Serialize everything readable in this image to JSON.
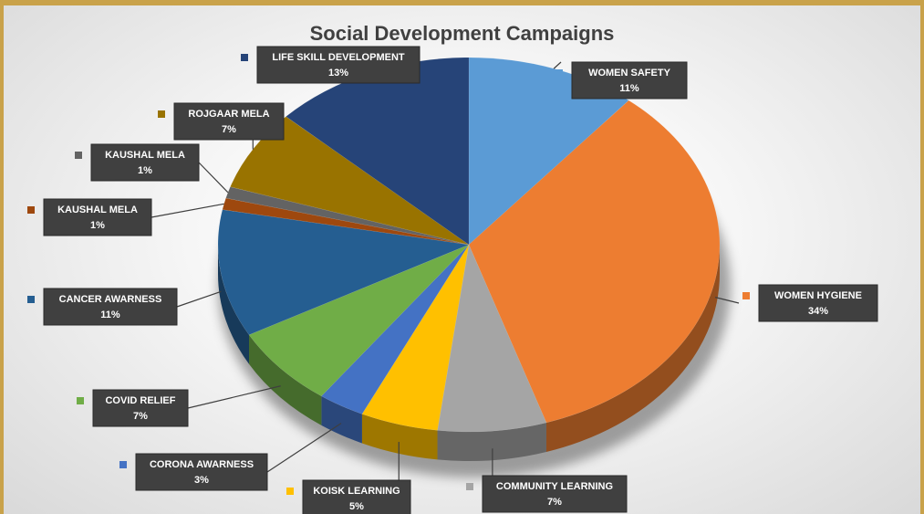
{
  "chart_data": {
    "type": "pie",
    "title": "Social Development Campaigns",
    "slices": [
      {
        "label": "WOMEN SAFETY",
        "pct": "11%",
        "value": 11,
        "color": "#5b9bd5"
      },
      {
        "label": "WOMEN HYGIENE",
        "pct": "34%",
        "value": 34,
        "color": "#ed7d31"
      },
      {
        "label": "COMMUNITY LEARNING",
        "pct": "7%",
        "value": 7,
        "color": "#a5a5a5"
      },
      {
        "label": "KOISK LEARNING",
        "pct": "5%",
        "value": 5,
        "color": "#ffc000"
      },
      {
        "label": "CORONA AWARNESS",
        "pct": "3%",
        "value": 3,
        "color": "#4472c4"
      },
      {
        "label": "COVID RELIEF",
        "pct": "7%",
        "value": 7,
        "color": "#70ad47"
      },
      {
        "label": "CANCER AWARNESS",
        "pct": "11%",
        "value": 11,
        "color": "#255e91"
      },
      {
        "label": "KAUSHAL MELA",
        "pct": "1%",
        "value": 1,
        "color": "#9e480e"
      },
      {
        "label": "KAUSHAL MELA",
        "pct": "1%",
        "value": 1,
        "color": "#636363"
      },
      {
        "label": "ROJGAAR MELA",
        "pct": "7%",
        "value": 7,
        "color": "#997300"
      },
      {
        "label": "LIFE SKILL DEVELOPMENT",
        "pct": "13%",
        "value": 13,
        "color": "#264478"
      }
    ]
  }
}
